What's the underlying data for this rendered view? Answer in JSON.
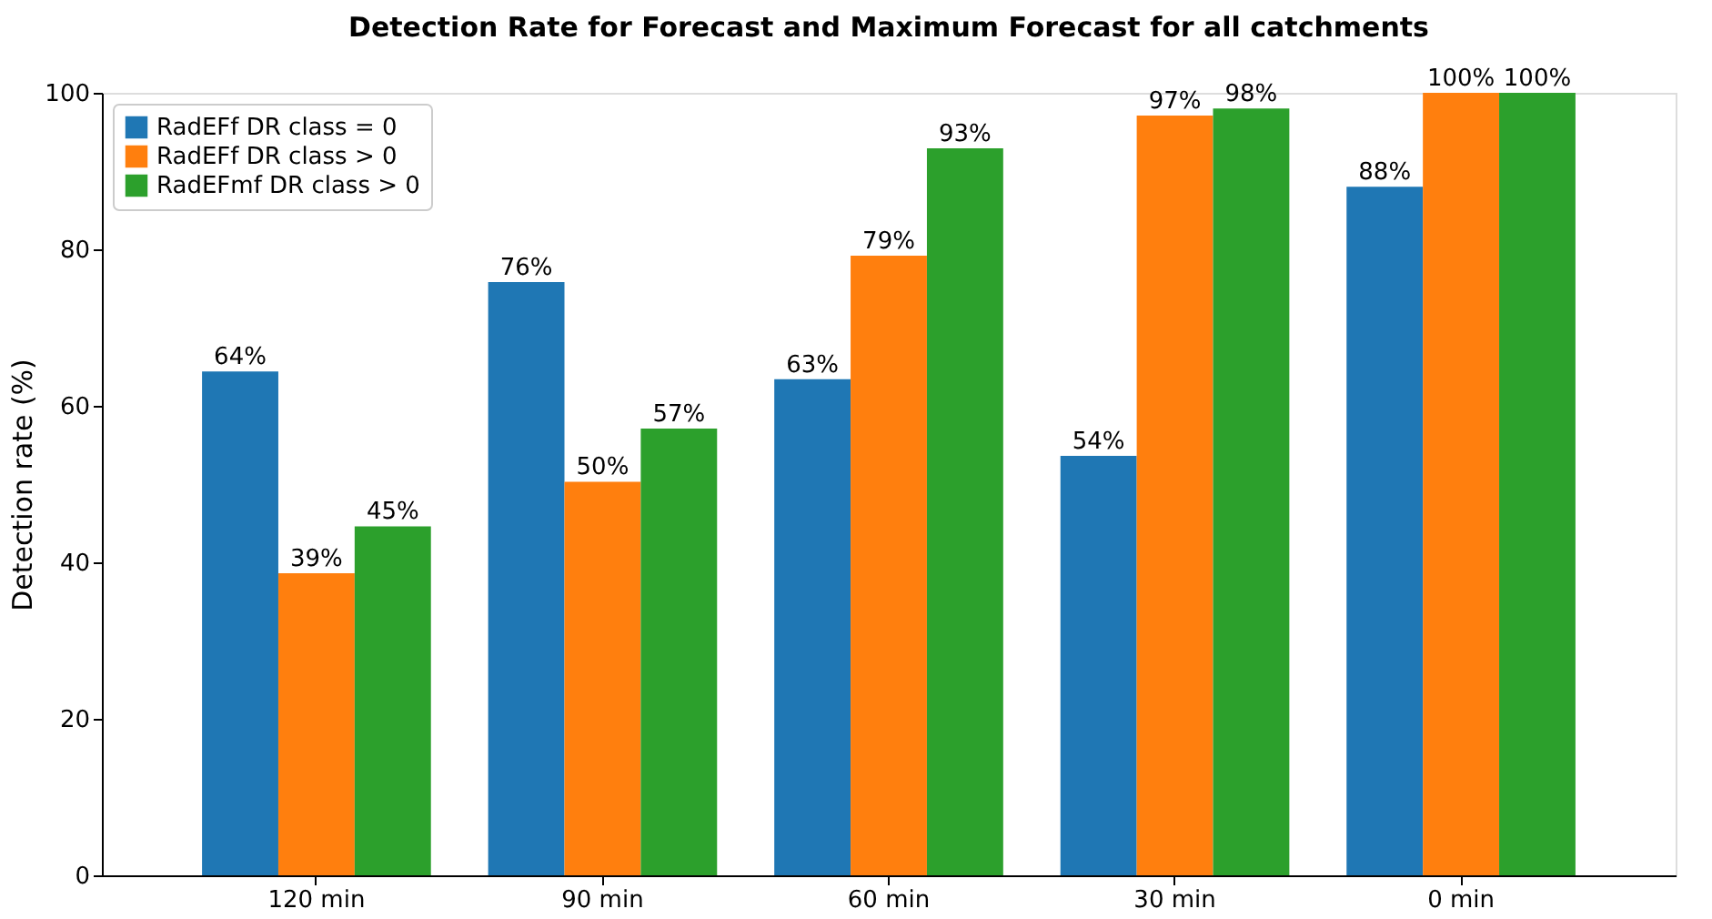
{
  "chart_data": {
    "type": "bar",
    "title": "Detection Rate for Forecast and Maximum Forecast for all catchments",
    "ylabel": "Detection rate (%)",
    "categories": [
      "120 min",
      "90 min",
      "60 min",
      "30 min",
      "0 min"
    ],
    "series": [
      {
        "name": "RadEFf DR class = 0",
        "color": "#1f77b4",
        "values": [
          64.4,
          75.8,
          63.4,
          53.6,
          88.0
        ],
        "value_labels": [
          "64%",
          "76%",
          "63%",
          "54%",
          "88%"
        ]
      },
      {
        "name": "RadEFf DR class > 0",
        "color": "#ff7f0e",
        "values": [
          38.6,
          50.3,
          79.2,
          97.1,
          100
        ],
        "value_labels": [
          "39%",
          "50%",
          "79%",
          "97%",
          "100%"
        ]
      },
      {
        "name": "RadEFmf DR class > 0",
        "color": "#2ca02c",
        "values": [
          44.6,
          57.1,
          92.9,
          98.0,
          100
        ],
        "value_labels": [
          "45%",
          "57%",
          "93%",
          "98%",
          "100%"
        ]
      }
    ],
    "ylim": [
      0,
      100
    ],
    "yticks": [
      0,
      20,
      40,
      60,
      80,
      100
    ],
    "grid": false,
    "legend": "top left"
  }
}
